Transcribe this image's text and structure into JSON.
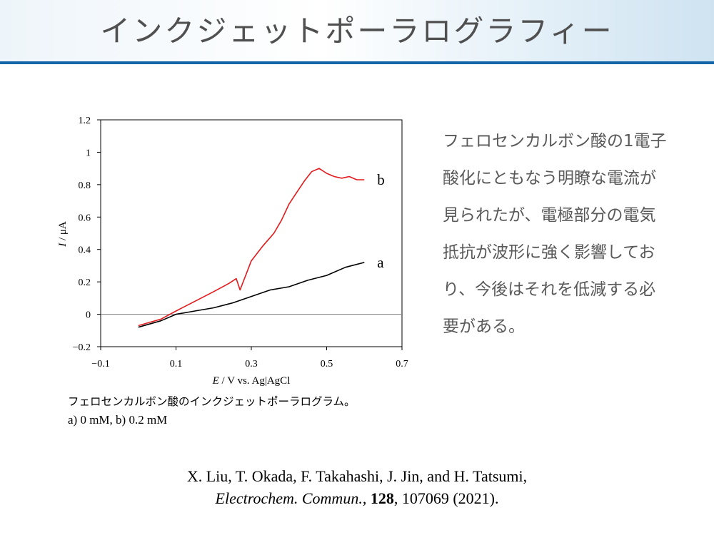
{
  "slide": {
    "title": "インクジェットポーラログラフィー",
    "note": "フェロセンカルボン酸の1電子酸化にともなう明瞭な電流が見られたが、電極部分の電気抵抗が波形に強く影響しており、今後はそれを低減する必要がある。",
    "caption_line1": "フェロセンカルボン酸のインクジェットポーラログラム。",
    "caption_line2": "a) 0 mM, b) 0.2 mM",
    "reference": {
      "authors": "X. Liu, T. Okada, F. Takahashi, J. Jin, and H. Tatsumi,",
      "journal": "Electrochem. Commun.",
      "volume": "128",
      "rest": ", 107069 (2021)."
    }
  },
  "colors": {
    "header_rule": "#1464a8",
    "series_a": "#000000",
    "series_b": "#e31a1c"
  },
  "chart_data": {
    "type": "line",
    "xlabel_italic": "E",
    "xlabel_rest": " / V vs. Ag|AgCl",
    "ylabel_italic": "I",
    "ylabel_rest": " / μA",
    "xlim": [
      -0.1,
      0.7
    ],
    "ylim": [
      -0.2,
      1.2
    ],
    "xticks": [
      -0.1,
      0.1,
      0.3,
      0.5,
      0.7
    ],
    "xtick_labels": [
      "−0.1",
      "0.1",
      "0.3",
      "0.5",
      "0.7"
    ],
    "yticks": [
      -0.2,
      0,
      0.2,
      0.4,
      0.6,
      0.8,
      1.0,
      1.2
    ],
    "ytick_labels": [
      "−0.2",
      "0",
      "0.2",
      "0.4",
      "0.6",
      "0.8",
      "1",
      "1.2"
    ],
    "zero_line": true,
    "series": [
      {
        "name": "a",
        "x": [
          0.0,
          0.03,
          0.06,
          0.1,
          0.15,
          0.2,
          0.25,
          0.3,
          0.35,
          0.4,
          0.45,
          0.5,
          0.55,
          0.6
        ],
        "y": [
          -0.08,
          -0.06,
          -0.04,
          0.0,
          0.02,
          0.04,
          0.07,
          0.11,
          0.15,
          0.17,
          0.21,
          0.24,
          0.29,
          0.32
        ]
      },
      {
        "name": "b",
        "x": [
          0.0,
          0.03,
          0.06,
          0.1,
          0.15,
          0.2,
          0.24,
          0.26,
          0.27,
          0.3,
          0.33,
          0.36,
          0.38,
          0.4,
          0.42,
          0.44,
          0.46,
          0.48,
          0.5,
          0.52,
          0.54,
          0.56,
          0.58,
          0.6
        ],
        "y": [
          -0.07,
          -0.05,
          -0.03,
          0.02,
          0.08,
          0.14,
          0.19,
          0.22,
          0.15,
          0.33,
          0.42,
          0.5,
          0.58,
          0.68,
          0.75,
          0.82,
          0.88,
          0.9,
          0.87,
          0.85,
          0.84,
          0.85,
          0.83,
          0.83
        ]
      }
    ]
  }
}
